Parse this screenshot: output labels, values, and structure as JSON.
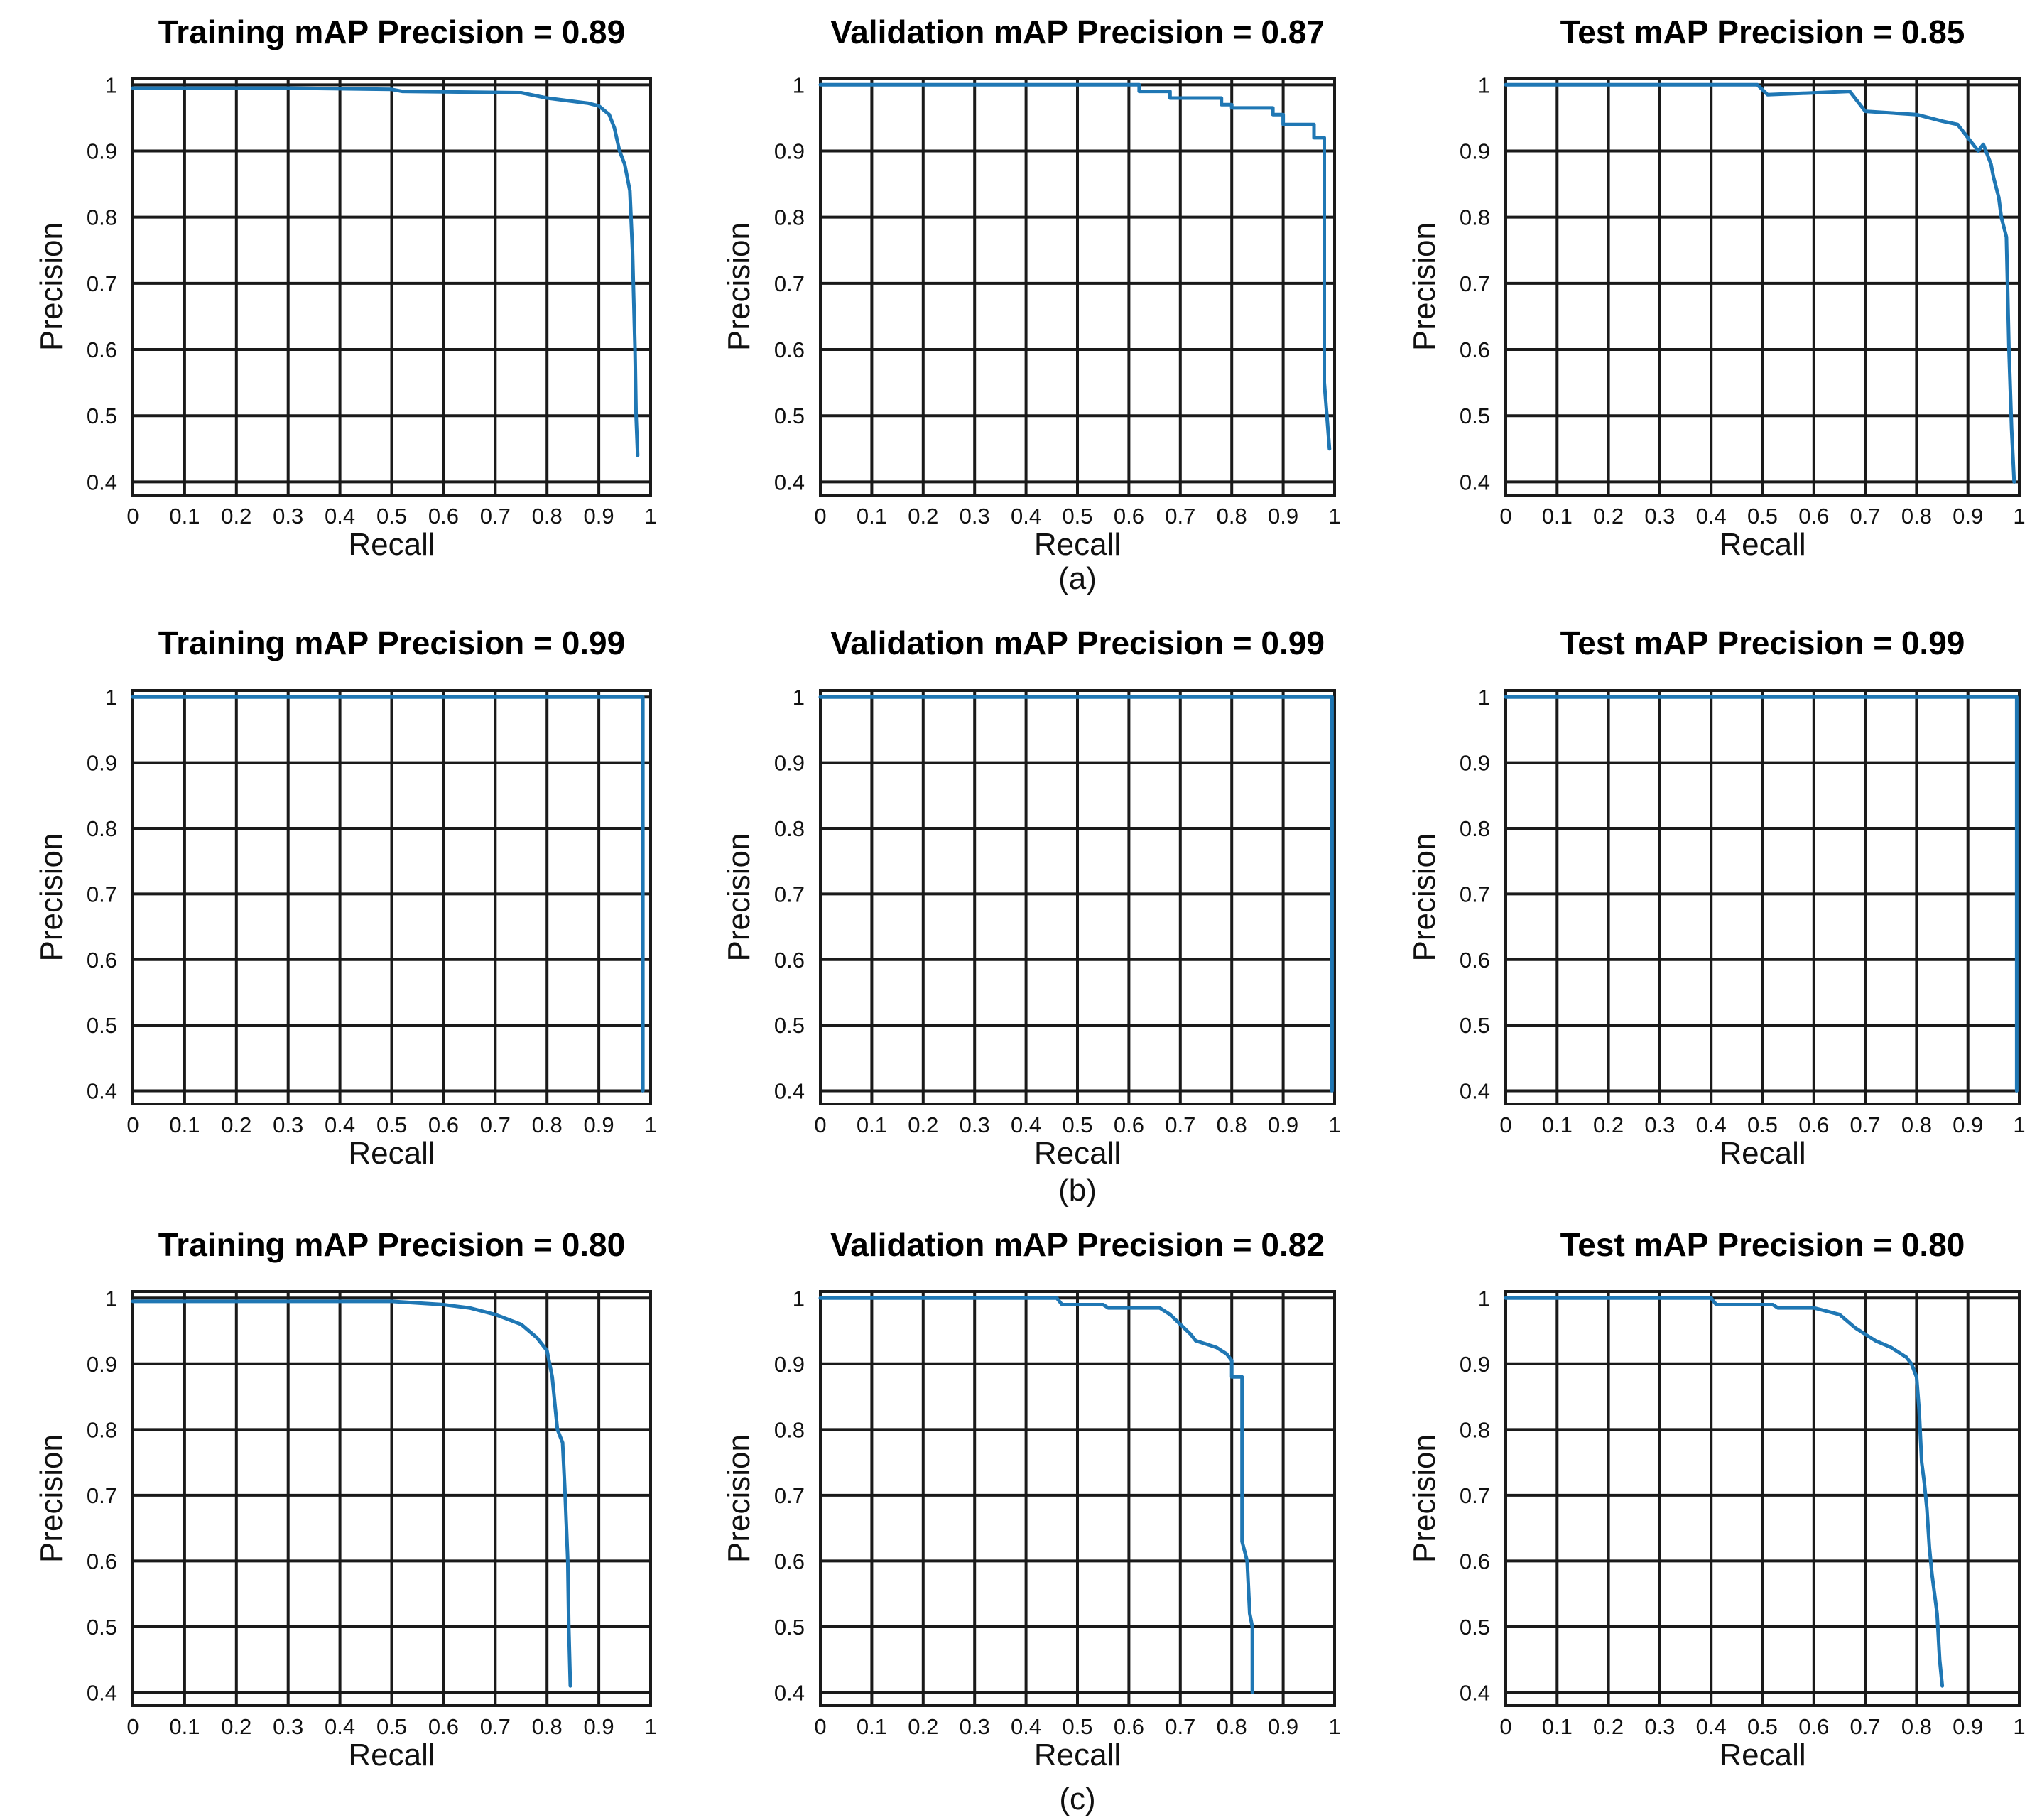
{
  "colors": {
    "curve": "#1f77b4",
    "grid": "#1a1a1a"
  },
  "captions": [
    "(a)",
    "(b)",
    "(c)"
  ],
  "chart_data": [
    {
      "type": "line",
      "title": "Training mAP Precision = 0.89",
      "xlabel": "Recall",
      "ylabel": "Precision",
      "xlim": [
        0,
        1
      ],
      "ylim": [
        0.38,
        1.01
      ],
      "grid": true,
      "xticks": [
        "0",
        "0.1",
        "0.2",
        "0.3",
        "0.4",
        "0.5",
        "0.6",
        "0.7",
        "0.8",
        "0.9",
        "1"
      ],
      "yticks": [
        "0.4",
        "0.5",
        "0.6",
        "0.7",
        "0.8",
        "0.9",
        "1"
      ],
      "series": [
        {
          "x": [
            0,
            0.3,
            0.5,
            0.52,
            0.75,
            0.8,
            0.85,
            0.88,
            0.9,
            0.92,
            0.93,
            0.94,
            0.95,
            0.955,
            0.96,
            0.965,
            0.97,
            0.972,
            0.975
          ],
          "y": [
            0.995,
            0.995,
            0.993,
            0.99,
            0.988,
            0.98,
            0.975,
            0.972,
            0.968,
            0.955,
            0.935,
            0.9,
            0.88,
            0.86,
            0.84,
            0.75,
            0.6,
            0.5,
            0.44
          ]
        }
      ]
    },
    {
      "type": "line",
      "title": "Validation mAP Precision = 0.87",
      "xlabel": "Recall",
      "ylabel": "Precision",
      "xlim": [
        0,
        1
      ],
      "ylim": [
        0.38,
        1.01
      ],
      "grid": true,
      "xticks": [
        "0",
        "0.1",
        "0.2",
        "0.3",
        "0.4",
        "0.5",
        "0.6",
        "0.7",
        "0.8",
        "0.9",
        "1"
      ],
      "yticks": [
        "0.4",
        "0.5",
        "0.6",
        "0.7",
        "0.8",
        "0.9",
        "1"
      ],
      "series": [
        {
          "x": [
            0,
            0.62,
            0.62,
            0.68,
            0.68,
            0.78,
            0.78,
            0.8,
            0.8,
            0.88,
            0.88,
            0.9,
            0.9,
            0.96,
            0.96,
            0.97,
            0.97,
            0.98,
            0.98,
            0.99
          ],
          "y": [
            1,
            1,
            0.99,
            0.99,
            0.98,
            0.98,
            0.97,
            0.97,
            0.965,
            0.965,
            0.955,
            0.955,
            0.94,
            0.94,
            0.92,
            0.92,
            0.92,
            0.92,
            0.55,
            0.45
          ]
        }
      ]
    },
    {
      "type": "line",
      "title": "Test mAP Precision = 0.85",
      "xlabel": "Recall",
      "ylabel": "Precision",
      "xlim": [
        0,
        1
      ],
      "ylim": [
        0.38,
        1.01
      ],
      "grid": true,
      "xticks": [
        "0",
        "0.1",
        "0.2",
        "0.3",
        "0.4",
        "0.5",
        "0.6",
        "0.7",
        "0.8",
        "0.9",
        "1"
      ],
      "yticks": [
        "0.4",
        "0.5",
        "0.6",
        "0.7",
        "0.8",
        "0.9",
        "1"
      ],
      "series": [
        {
          "x": [
            0,
            0.49,
            0.51,
            0.67,
            0.7,
            0.8,
            0.85,
            0.88,
            0.9,
            0.92,
            0.93,
            0.945,
            0.95,
            0.96,
            0.965,
            0.975,
            0.98,
            0.985,
            0.99
          ],
          "y": [
            1,
            1,
            0.985,
            0.99,
            0.96,
            0.955,
            0.945,
            0.94,
            0.92,
            0.9,
            0.91,
            0.88,
            0.86,
            0.83,
            0.8,
            0.77,
            0.6,
            0.48,
            0.4
          ]
        }
      ]
    },
    {
      "type": "line",
      "title": "Training mAP Precision = 0.99",
      "xlabel": "Recall",
      "ylabel": "Precision",
      "xlim": [
        0,
        1
      ],
      "ylim": [
        0.38,
        1.01
      ],
      "grid": true,
      "xticks": [
        "0",
        "0.1",
        "0.2",
        "0.3",
        "0.4",
        "0.5",
        "0.6",
        "0.7",
        "0.8",
        "0.9",
        "1"
      ],
      "yticks": [
        "0.4",
        "0.5",
        "0.6",
        "0.7",
        "0.8",
        "0.9",
        "1"
      ],
      "series": [
        {
          "x": [
            0,
            0.985,
            0.985
          ],
          "y": [
            1,
            1,
            0.4
          ]
        }
      ]
    },
    {
      "type": "line",
      "title": "Validation mAP Precision = 0.99",
      "xlabel": "Recall",
      "ylabel": "Precision",
      "xlim": [
        0,
        1
      ],
      "ylim": [
        0.38,
        1.01
      ],
      "grid": true,
      "xticks": [
        "0",
        "0.1",
        "0.2",
        "0.3",
        "0.4",
        "0.5",
        "0.6",
        "0.7",
        "0.8",
        "0.9",
        "1"
      ],
      "yticks": [
        "0.4",
        "0.5",
        "0.6",
        "0.7",
        "0.8",
        "0.9",
        "1"
      ],
      "series": [
        {
          "x": [
            0,
            0.995,
            0.995
          ],
          "y": [
            1,
            1,
            0.4
          ]
        }
      ]
    },
    {
      "type": "line",
      "title": "Test mAP Precision = 0.99",
      "xlabel": "Recall",
      "ylabel": "Precision",
      "xlim": [
        0,
        1
      ],
      "ylim": [
        0.38,
        1.01
      ],
      "grid": true,
      "xticks": [
        "0",
        "0.1",
        "0.2",
        "0.3",
        "0.4",
        "0.5",
        "0.6",
        "0.7",
        "0.8",
        "0.9",
        "1"
      ],
      "yticks": [
        "0.4",
        "0.5",
        "0.6",
        "0.7",
        "0.8",
        "0.9",
        "1"
      ],
      "series": [
        {
          "x": [
            0,
            0.995,
            0.995
          ],
          "y": [
            1,
            1,
            0.4
          ]
        }
      ]
    },
    {
      "type": "line",
      "title": "Training mAP Precision = 0.80",
      "xlabel": "Recall",
      "ylabel": "Precision",
      "xlim": [
        0,
        1
      ],
      "ylim": [
        0.38,
        1.01
      ],
      "grid": true,
      "xticks": [
        "0",
        "0.1",
        "0.2",
        "0.3",
        "0.4",
        "0.5",
        "0.6",
        "0.7",
        "0.8",
        "0.9",
        "1"
      ],
      "yticks": [
        "0.4",
        "0.5",
        "0.6",
        "0.7",
        "0.8",
        "0.9",
        "1"
      ],
      "series": [
        {
          "x": [
            0,
            0.5,
            0.6,
            0.65,
            0.7,
            0.75,
            0.78,
            0.8,
            0.81,
            0.815,
            0.82,
            0.83,
            0.835,
            0.84,
            0.842,
            0.845
          ],
          "y": [
            0.995,
            0.995,
            0.99,
            0.985,
            0.975,
            0.96,
            0.94,
            0.92,
            0.88,
            0.84,
            0.8,
            0.78,
            0.7,
            0.6,
            0.5,
            0.41
          ]
        }
      ]
    },
    {
      "type": "line",
      "title": "Validation mAP Precision = 0.82",
      "xlabel": "Recall",
      "ylabel": "Precision",
      "xlim": [
        0,
        1
      ],
      "ylim": [
        0.38,
        1.01
      ],
      "grid": true,
      "xticks": [
        "0",
        "0.1",
        "0.2",
        "0.3",
        "0.4",
        "0.5",
        "0.6",
        "0.7",
        "0.8",
        "0.9",
        "1"
      ],
      "yticks": [
        "0.4",
        "0.5",
        "0.6",
        "0.7",
        "0.8",
        "0.9",
        "1"
      ],
      "series": [
        {
          "x": [
            0,
            0.46,
            0.47,
            0.55,
            0.56,
            0.66,
            0.68,
            0.7,
            0.72,
            0.73,
            0.75,
            0.77,
            0.79,
            0.8,
            0.8,
            0.82,
            0.82,
            0.83,
            0.835,
            0.84,
            0.84
          ],
          "y": [
            1,
            1,
            0.99,
            0.99,
            0.985,
            0.985,
            0.975,
            0.96,
            0.945,
            0.935,
            0.93,
            0.925,
            0.915,
            0.905,
            0.88,
            0.88,
            0.63,
            0.6,
            0.52,
            0.5,
            0.4
          ]
        }
      ]
    },
    {
      "type": "line",
      "title": "Test mAP Precision = 0.80",
      "xlabel": "Recall",
      "ylabel": "Precision",
      "xlim": [
        0,
        1
      ],
      "ylim": [
        0.38,
        1.01
      ],
      "grid": true,
      "xticks": [
        "0",
        "0.1",
        "0.2",
        "0.3",
        "0.4",
        "0.5",
        "0.6",
        "0.7",
        "0.8",
        "0.9",
        "1"
      ],
      "yticks": [
        "0.4",
        "0.5",
        "0.6",
        "0.7",
        "0.8",
        "0.9",
        "1"
      ],
      "series": [
        {
          "x": [
            0,
            0.4,
            0.41,
            0.52,
            0.53,
            0.6,
            0.65,
            0.68,
            0.7,
            0.72,
            0.75,
            0.78,
            0.79,
            0.8,
            0.805,
            0.81,
            0.815,
            0.82,
            0.825,
            0.83,
            0.84,
            0.845,
            0.85
          ],
          "y": [
            1,
            1,
            0.99,
            0.99,
            0.985,
            0.985,
            0.975,
            0.955,
            0.945,
            0.935,
            0.925,
            0.91,
            0.9,
            0.88,
            0.83,
            0.75,
            0.72,
            0.68,
            0.62,
            0.58,
            0.52,
            0.45,
            0.41
          ]
        }
      ]
    }
  ]
}
